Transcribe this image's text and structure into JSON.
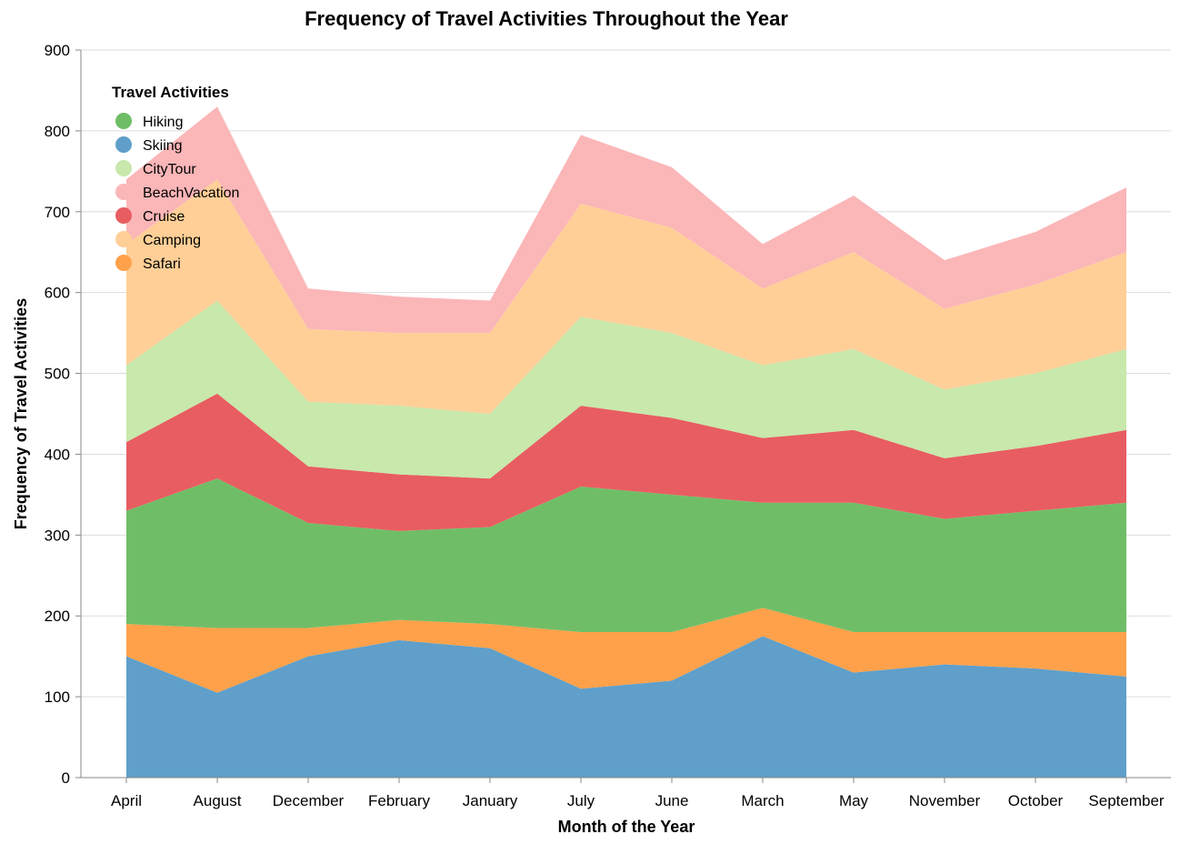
{
  "chart_data": {
    "type": "area",
    "stacked": true,
    "title": "Frequency of Travel Activities Throughout the Year",
    "xlabel": "Month of the Year",
    "ylabel": "Frequency of Travel Activities",
    "ylim": [
      0,
      900
    ],
    "yticks": [
      "0",
      "100",
      "200",
      "300",
      "400",
      "500",
      "600",
      "700",
      "800",
      "900"
    ],
    "grid": true,
    "categories": [
      "April",
      "August",
      "December",
      "February",
      "January",
      "July",
      "June",
      "March",
      "May",
      "November",
      "October",
      "September"
    ],
    "stack_order": [
      "Skiing",
      "Safari",
      "Hiking",
      "Cruise",
      "CityTour",
      "Camping",
      "BeachVacation"
    ],
    "series": [
      {
        "name": "Skiing",
        "color": "#5f9fca",
        "values": [
          150,
          105,
          150,
          170,
          160,
          110,
          120,
          175,
          130,
          140,
          135,
          125
        ]
      },
      {
        "name": "Safari",
        "color": "#ffa14a",
        "values": [
          40,
          80,
          35,
          25,
          30,
          70,
          60,
          35,
          50,
          40,
          45,
          55
        ]
      },
      {
        "name": "Hiking",
        "color": "#6fbe67",
        "values": [
          140,
          185,
          130,
          110,
          120,
          180,
          170,
          130,
          160,
          140,
          150,
          160
        ]
      },
      {
        "name": "Cruise",
        "color": "#e85d61",
        "values": [
          85,
          105,
          70,
          70,
          60,
          100,
          95,
          80,
          90,
          75,
          80,
          90
        ]
      },
      {
        "name": "CityTour",
        "color": "#c8e8ac",
        "values": [
          95,
          115,
          80,
          85,
          80,
          110,
          105,
          90,
          100,
          85,
          90,
          100
        ]
      },
      {
        "name": "Camping",
        "color": "#ffcf97",
        "values": [
          150,
          150,
          90,
          90,
          100,
          140,
          130,
          95,
          120,
          100,
          110,
          120
        ]
      },
      {
        "name": "BeachVacation",
        "color": "#fbb6b8",
        "values": [
          80,
          90,
          50,
          45,
          40,
          85,
          75,
          55,
          70,
          60,
          65,
          80
        ]
      }
    ],
    "legend": {
      "title": "Travel Activities",
      "placement": "top-left",
      "entries": [
        {
          "label": "Hiking",
          "color": "#6fbe67"
        },
        {
          "label": "Skiing",
          "color": "#5f9fca"
        },
        {
          "label": "CityTour",
          "color": "#c8e8ac"
        },
        {
          "label": "BeachVacation",
          "color": "#fbb6b8"
        },
        {
          "label": "Cruise",
          "color": "#e85d61"
        },
        {
          "label": "Camping",
          "color": "#ffcf97"
        },
        {
          "label": "Safari",
          "color": "#ffa14a"
        }
      ]
    }
  }
}
